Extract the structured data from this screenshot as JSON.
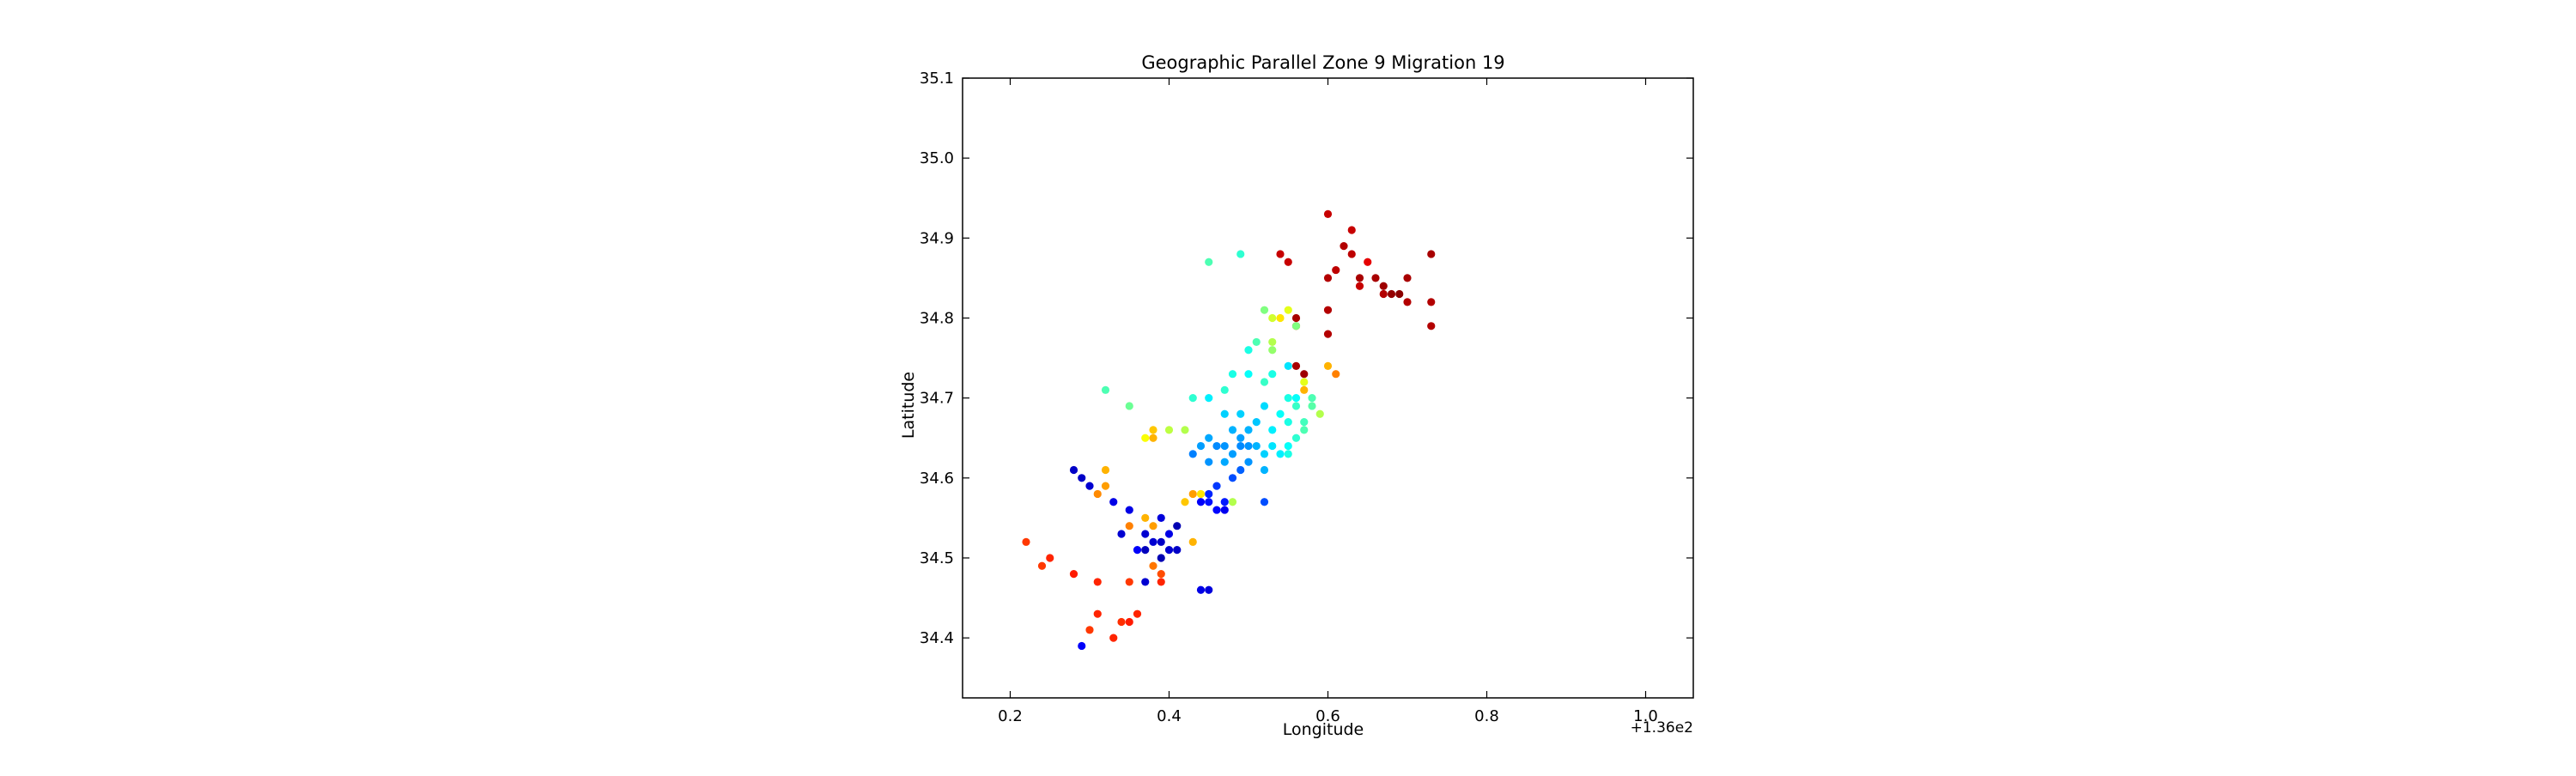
{
  "chart_data": {
    "type": "scatter",
    "title": "Geographic Parallel Zone 9 Migration 19",
    "xlabel": "Longitude",
    "ylabel": "Latitude",
    "x_offset_label": "+1.36e2",
    "xlim": [
      136.14,
      137.06
    ],
    "ylim": [
      34.325,
      35.1
    ],
    "x_ticks": [
      136.2,
      136.4,
      136.6,
      136.8,
      137.0
    ],
    "x_tick_labels": [
      "0.2",
      "0.4",
      "0.6",
      "0.8",
      "1.0"
    ],
    "y_ticks": [
      34.4,
      34.5,
      34.6,
      34.7,
      34.8,
      34.9,
      35.0,
      35.1
    ],
    "y_tick_labels": [
      "34.4",
      "34.5",
      "34.6",
      "34.7",
      "34.8",
      "34.9",
      "35.0",
      "35.1"
    ],
    "grid": false,
    "legend": "none",
    "colormap": "jet",
    "points": [
      [
        136.6,
        34.93,
        0.93
      ],
      [
        136.63,
        34.91,
        0.93
      ],
      [
        136.62,
        34.89,
        0.95
      ],
      [
        136.63,
        34.88,
        0.94
      ],
      [
        136.61,
        34.86,
        0.94
      ],
      [
        136.6,
        34.85,
        0.95
      ],
      [
        136.64,
        34.85,
        0.96
      ],
      [
        136.64,
        34.84,
        0.93
      ],
      [
        136.65,
        34.87,
        0.9
      ],
      [
        136.66,
        34.85,
        0.96
      ],
      [
        136.67,
        34.84,
        0.97
      ],
      [
        136.68,
        34.83,
        0.98
      ],
      [
        136.69,
        34.83,
        0.99
      ],
      [
        136.7,
        34.85,
        0.96
      ],
      [
        136.7,
        34.82,
        0.95
      ],
      [
        136.67,
        34.83,
        0.95
      ],
      [
        136.73,
        34.88,
        0.96
      ],
      [
        136.73,
        34.82,
        0.95
      ],
      [
        136.73,
        34.79,
        0.95
      ],
      [
        136.54,
        34.88,
        0.93
      ],
      [
        136.55,
        34.87,
        0.93
      ],
      [
        136.6,
        34.81,
        0.95
      ],
      [
        136.6,
        34.78,
        0.95
      ],
      [
        136.56,
        34.8,
        0.96
      ],
      [
        136.56,
        34.74,
        0.96
      ],
      [
        136.57,
        34.73,
        0.97
      ],
      [
        136.56,
        34.79,
        0.85
      ],
      [
        136.45,
        34.87,
        0.45
      ],
      [
        136.49,
        34.88,
        0.42
      ],
      [
        136.52,
        34.81,
        0.5
      ],
      [
        136.53,
        34.8,
        0.58
      ],
      [
        136.54,
        34.8,
        0.65
      ],
      [
        136.55,
        34.81,
        0.6
      ],
      [
        136.56,
        34.79,
        0.5
      ],
      [
        136.53,
        34.77,
        0.55
      ],
      [
        136.5,
        34.76,
        0.4
      ],
      [
        136.51,
        34.77,
        0.45
      ],
      [
        136.53,
        34.76,
        0.52
      ],
      [
        136.55,
        34.74,
        0.35
      ],
      [
        136.6,
        34.74,
        0.7
      ],
      [
        136.61,
        34.73,
        0.75
      ],
      [
        136.57,
        34.72,
        0.6
      ],
      [
        136.57,
        34.71,
        0.7
      ],
      [
        136.58,
        34.7,
        0.45
      ],
      [
        136.56,
        34.7,
        0.38
      ],
      [
        136.59,
        34.68,
        0.55
      ],
      [
        136.5,
        34.73,
        0.38
      ],
      [
        136.48,
        34.73,
        0.4
      ],
      [
        136.47,
        34.71,
        0.42
      ],
      [
        136.52,
        34.72,
        0.43
      ],
      [
        136.53,
        34.73,
        0.4
      ],
      [
        136.45,
        34.7,
        0.36
      ],
      [
        136.47,
        34.68,
        0.33
      ],
      [
        136.49,
        34.68,
        0.33
      ],
      [
        136.48,
        34.66,
        0.3
      ],
      [
        136.49,
        34.65,
        0.28
      ],
      [
        136.5,
        34.66,
        0.3
      ],
      [
        136.51,
        34.67,
        0.32
      ],
      [
        136.52,
        34.69,
        0.34
      ],
      [
        136.53,
        34.66,
        0.36
      ],
      [
        136.54,
        34.68,
        0.38
      ],
      [
        136.55,
        34.67,
        0.4
      ],
      [
        136.55,
        34.7,
        0.4
      ],
      [
        136.56,
        34.69,
        0.43
      ],
      [
        136.57,
        34.66,
        0.45
      ],
      [
        136.56,
        34.65,
        0.42
      ],
      [
        136.55,
        34.64,
        0.38
      ],
      [
        136.54,
        34.63,
        0.36
      ],
      [
        136.53,
        34.64,
        0.35
      ],
      [
        136.52,
        34.63,
        0.33
      ],
      [
        136.51,
        34.64,
        0.3
      ],
      [
        136.5,
        34.64,
        0.27
      ],
      [
        136.49,
        34.64,
        0.26
      ],
      [
        136.48,
        34.63,
        0.28
      ],
      [
        136.47,
        34.64,
        0.27
      ],
      [
        136.46,
        34.64,
        0.26
      ],
      [
        136.45,
        34.65,
        0.29
      ],
      [
        136.44,
        34.64,
        0.28
      ],
      [
        136.45,
        34.62,
        0.27
      ],
      [
        136.47,
        34.62,
        0.29
      ],
      [
        136.5,
        34.62,
        0.27
      ],
      [
        136.52,
        34.61,
        0.3
      ],
      [
        136.55,
        34.63,
        0.4
      ],
      [
        136.57,
        34.67,
        0.44
      ],
      [
        136.58,
        34.69,
        0.46
      ],
      [
        136.43,
        34.63,
        0.25
      ],
      [
        136.49,
        34.61,
        0.22
      ],
      [
        136.48,
        34.6,
        0.2
      ],
      [
        136.46,
        34.59,
        0.18
      ],
      [
        136.45,
        34.58,
        0.16
      ],
      [
        136.45,
        34.57,
        0.14
      ],
      [
        136.46,
        34.56,
        0.13
      ],
      [
        136.47,
        34.57,
        0.15
      ],
      [
        136.44,
        34.57,
        0.12
      ],
      [
        136.47,
        34.56,
        0.11
      ],
      [
        136.52,
        34.57,
        0.2
      ],
      [
        136.42,
        34.57,
        0.68
      ],
      [
        136.43,
        34.58,
        0.72
      ],
      [
        136.44,
        34.58,
        0.65
      ],
      [
        136.48,
        34.57,
        0.55
      ],
      [
        136.4,
        34.66,
        0.56
      ],
      [
        136.38,
        34.66,
        0.68
      ],
      [
        136.37,
        34.65,
        0.62
      ],
      [
        136.38,
        34.65,
        0.7
      ],
      [
        136.35,
        34.69,
        0.48
      ],
      [
        136.32,
        34.71,
        0.45
      ],
      [
        136.43,
        34.7,
        0.42
      ],
      [
        136.42,
        34.66,
        0.55
      ],
      [
        136.32,
        34.61,
        0.7
      ],
      [
        136.32,
        34.59,
        0.72
      ],
      [
        136.31,
        34.58,
        0.74
      ],
      [
        136.3,
        34.59,
        0.08
      ],
      [
        136.28,
        34.61,
        0.07
      ],
      [
        136.29,
        34.6,
        0.07
      ],
      [
        136.33,
        34.57,
        0.1
      ],
      [
        136.35,
        34.56,
        0.1
      ],
      [
        136.34,
        34.53,
        0.08
      ],
      [
        136.37,
        34.55,
        0.7
      ],
      [
        136.38,
        34.54,
        0.72
      ],
      [
        136.39,
        34.55,
        0.09
      ],
      [
        136.38,
        34.52,
        0.08
      ],
      [
        136.37,
        34.51,
        0.06
      ],
      [
        136.39,
        34.52,
        0.07
      ],
      [
        136.4,
        34.53,
        0.1
      ],
      [
        136.41,
        34.54,
        0.05
      ],
      [
        136.4,
        34.51,
        0.08
      ],
      [
        136.41,
        34.51,
        0.07
      ],
      [
        136.39,
        34.5,
        0.05
      ],
      [
        136.37,
        34.53,
        0.08
      ],
      [
        136.36,
        34.51,
        0.12
      ],
      [
        136.38,
        34.49,
        0.76
      ],
      [
        136.39,
        34.48,
        0.8
      ],
      [
        136.39,
        34.47,
        0.84
      ],
      [
        136.37,
        34.47,
        0.08
      ],
      [
        136.43,
        34.52,
        0.7
      ],
      [
        136.35,
        34.54,
        0.75
      ],
      [
        136.44,
        34.46,
        0.1
      ],
      [
        136.45,
        34.46,
        0.09
      ],
      [
        136.22,
        34.52,
        0.82
      ],
      [
        136.25,
        34.5,
        0.84
      ],
      [
        136.24,
        34.49,
        0.82
      ],
      [
        136.28,
        34.48,
        0.85
      ],
      [
        136.31,
        34.47,
        0.84
      ],
      [
        136.35,
        34.47,
        0.82
      ],
      [
        136.31,
        34.43,
        0.84
      ],
      [
        136.34,
        34.42,
        0.83
      ],
      [
        136.35,
        34.42,
        0.85
      ],
      [
        136.36,
        34.43,
        0.84
      ],
      [
        136.3,
        34.41,
        0.82
      ],
      [
        136.33,
        34.4,
        0.84
      ],
      [
        136.29,
        34.39,
        0.12
      ]
    ]
  }
}
